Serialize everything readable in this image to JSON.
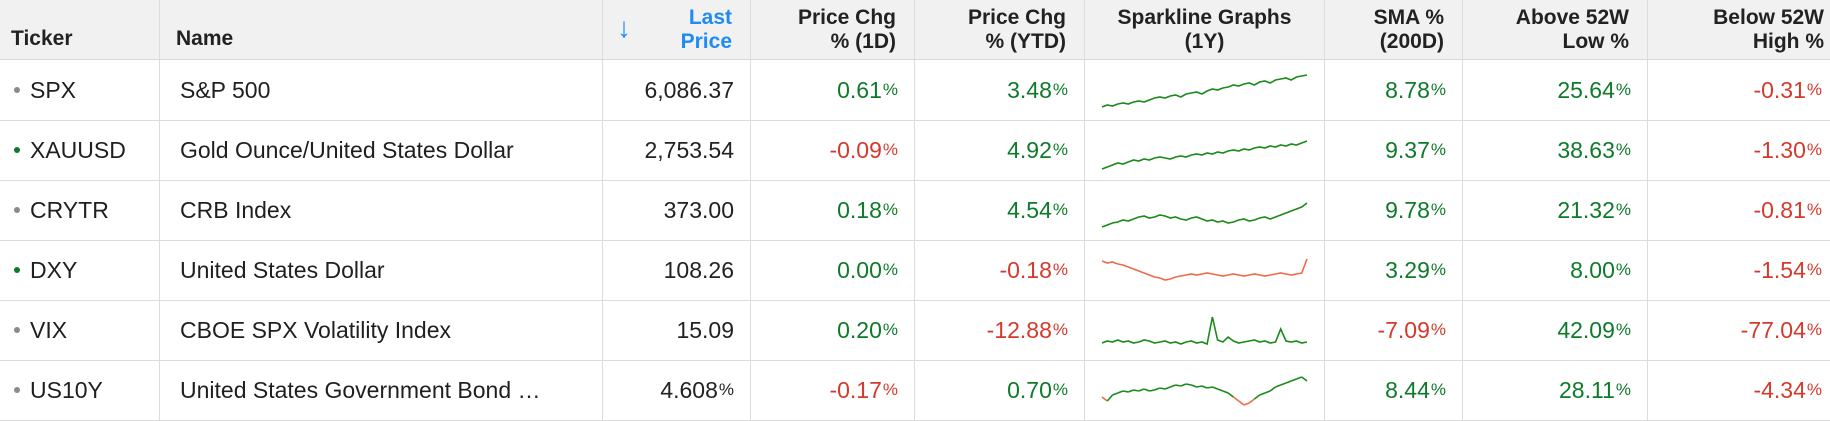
{
  "columns": {
    "ticker": "Ticker",
    "name": "Name",
    "last_price": [
      "Last",
      "Price"
    ],
    "chg_1d": [
      "Price Chg",
      "% (1D)"
    ],
    "chg_ytd": [
      "Price Chg",
      "% (YTD)"
    ],
    "sparkline": [
      "Sparkline Graphs",
      "(1Y)"
    ],
    "sma": [
      "SMA %",
      "(200D)"
    ],
    "above_low": [
      "Above 52W",
      "Low %"
    ],
    "below_high": [
      "Below 52W",
      "High %"
    ]
  },
  "sort_arrow": "↓",
  "colors": {
    "positive": "#0e7a2a",
    "negative": "#d33a2c",
    "sparkline_up": "#1a8a1a",
    "sparkline_down": "#ef6a4a",
    "accent": "#1f8cf2"
  },
  "rows": [
    {
      "ticker": "SPX",
      "dot": "gray",
      "name": "S&P 500",
      "last_price": "6,086.37",
      "last_price_pct": false,
      "chg_1d": "0.61",
      "chg_ytd": "3.48",
      "sma": "8.78",
      "above_low": "25.64",
      "below_high": "-0.31",
      "spark_trend": "up",
      "spark": [
        40,
        38,
        39,
        37,
        36,
        37,
        35,
        34,
        35,
        33,
        31,
        30,
        31,
        29,
        28,
        30,
        27,
        26,
        25,
        27,
        24,
        22,
        23,
        21,
        20,
        18,
        19,
        17,
        16,
        18,
        15,
        14,
        16,
        13,
        12,
        11,
        13,
        10,
        9,
        8
      ]
    },
    {
      "ticker": "XAUUSD",
      "dot": "green",
      "name": "Gold Ounce/United States Dollar",
      "last_price": "2,753.54",
      "last_price_pct": false,
      "chg_1d": "-0.09",
      "chg_ytd": "4.92",
      "sma": "9.37",
      "above_low": "38.63",
      "below_high": "-1.30",
      "spark_trend": "up",
      "spark": [
        42,
        40,
        38,
        36,
        37,
        35,
        33,
        34,
        32,
        33,
        31,
        30,
        31,
        32,
        30,
        29,
        30,
        28,
        27,
        28,
        26,
        27,
        25,
        26,
        24,
        23,
        24,
        22,
        23,
        21,
        20,
        21,
        19,
        20,
        18,
        19,
        17,
        18,
        16,
        14
      ]
    },
    {
      "ticker": "CRYTR",
      "dot": "gray",
      "name": "CRB Index",
      "last_price": "373.00",
      "last_price_pct": false,
      "chg_1d": "0.18",
      "chg_ytd": "4.54",
      "sma": "9.78",
      "above_low": "21.32",
      "below_high": "-0.81",
      "spark_trend": "up",
      "spark": [
        40,
        38,
        36,
        35,
        33,
        34,
        32,
        30,
        29,
        31,
        30,
        28,
        29,
        31,
        30,
        32,
        33,
        31,
        30,
        32,
        34,
        33,
        35,
        34,
        36,
        35,
        33,
        32,
        34,
        33,
        31,
        30,
        32,
        30,
        28,
        26,
        24,
        22,
        20,
        16
      ]
    },
    {
      "ticker": "DXY",
      "dot": "green",
      "name": "United States Dollar",
      "last_price": "108.26",
      "last_price_pct": false,
      "chg_1d": "0.00",
      "chg_ytd": "-0.18",
      "sma": "3.29",
      "above_low": "8.00",
      "below_high": "-1.54",
      "spark_trend": "down",
      "spark": [
        14,
        16,
        15,
        17,
        18,
        20,
        22,
        24,
        26,
        28,
        30,
        31,
        33,
        32,
        30,
        29,
        28,
        27,
        28,
        27,
        26,
        27,
        28,
        29,
        28,
        27,
        28,
        29,
        28,
        27,
        28,
        29,
        28,
        27,
        26,
        27,
        28,
        27,
        26,
        12
      ]
    },
    {
      "ticker": "VIX",
      "dot": "gray",
      "name": "CBOE SPX Volatility Index",
      "last_price": "15.09",
      "last_price_pct": false,
      "chg_1d": "0.20",
      "chg_ytd": "-12.88",
      "sma": "-7.09",
      "above_low": "42.09",
      "below_high": "-77.04",
      "spark_trend": "up",
      "spark": [
        36,
        34,
        35,
        33,
        35,
        34,
        36,
        35,
        33,
        34,
        36,
        35,
        34,
        36,
        35,
        37,
        35,
        34,
        36,
        35,
        37,
        10,
        33,
        35,
        30,
        34,
        36,
        35,
        34,
        33,
        35,
        34,
        36,
        35,
        22,
        34,
        35,
        34,
        36,
        35
      ]
    },
    {
      "ticker": "US10Y",
      "dot": "gray",
      "name": "United States Government Bond …",
      "last_price": "4.608",
      "last_price_pct": true,
      "chg_1d": "-0.17",
      "chg_ytd": "0.70",
      "sma": "8.44",
      "above_low": "28.11",
      "below_high": "-4.34",
      "spark_trend": "mixed",
      "spark": [
        30,
        34,
        28,
        26,
        24,
        25,
        23,
        24,
        22,
        24,
        23,
        21,
        22,
        20,
        18,
        19,
        17,
        18,
        20,
        19,
        21,
        20,
        22,
        24,
        26,
        30,
        34,
        38,
        36,
        32,
        28,
        26,
        24,
        20,
        18,
        16,
        14,
        12,
        10,
        14
      ]
    }
  ]
}
